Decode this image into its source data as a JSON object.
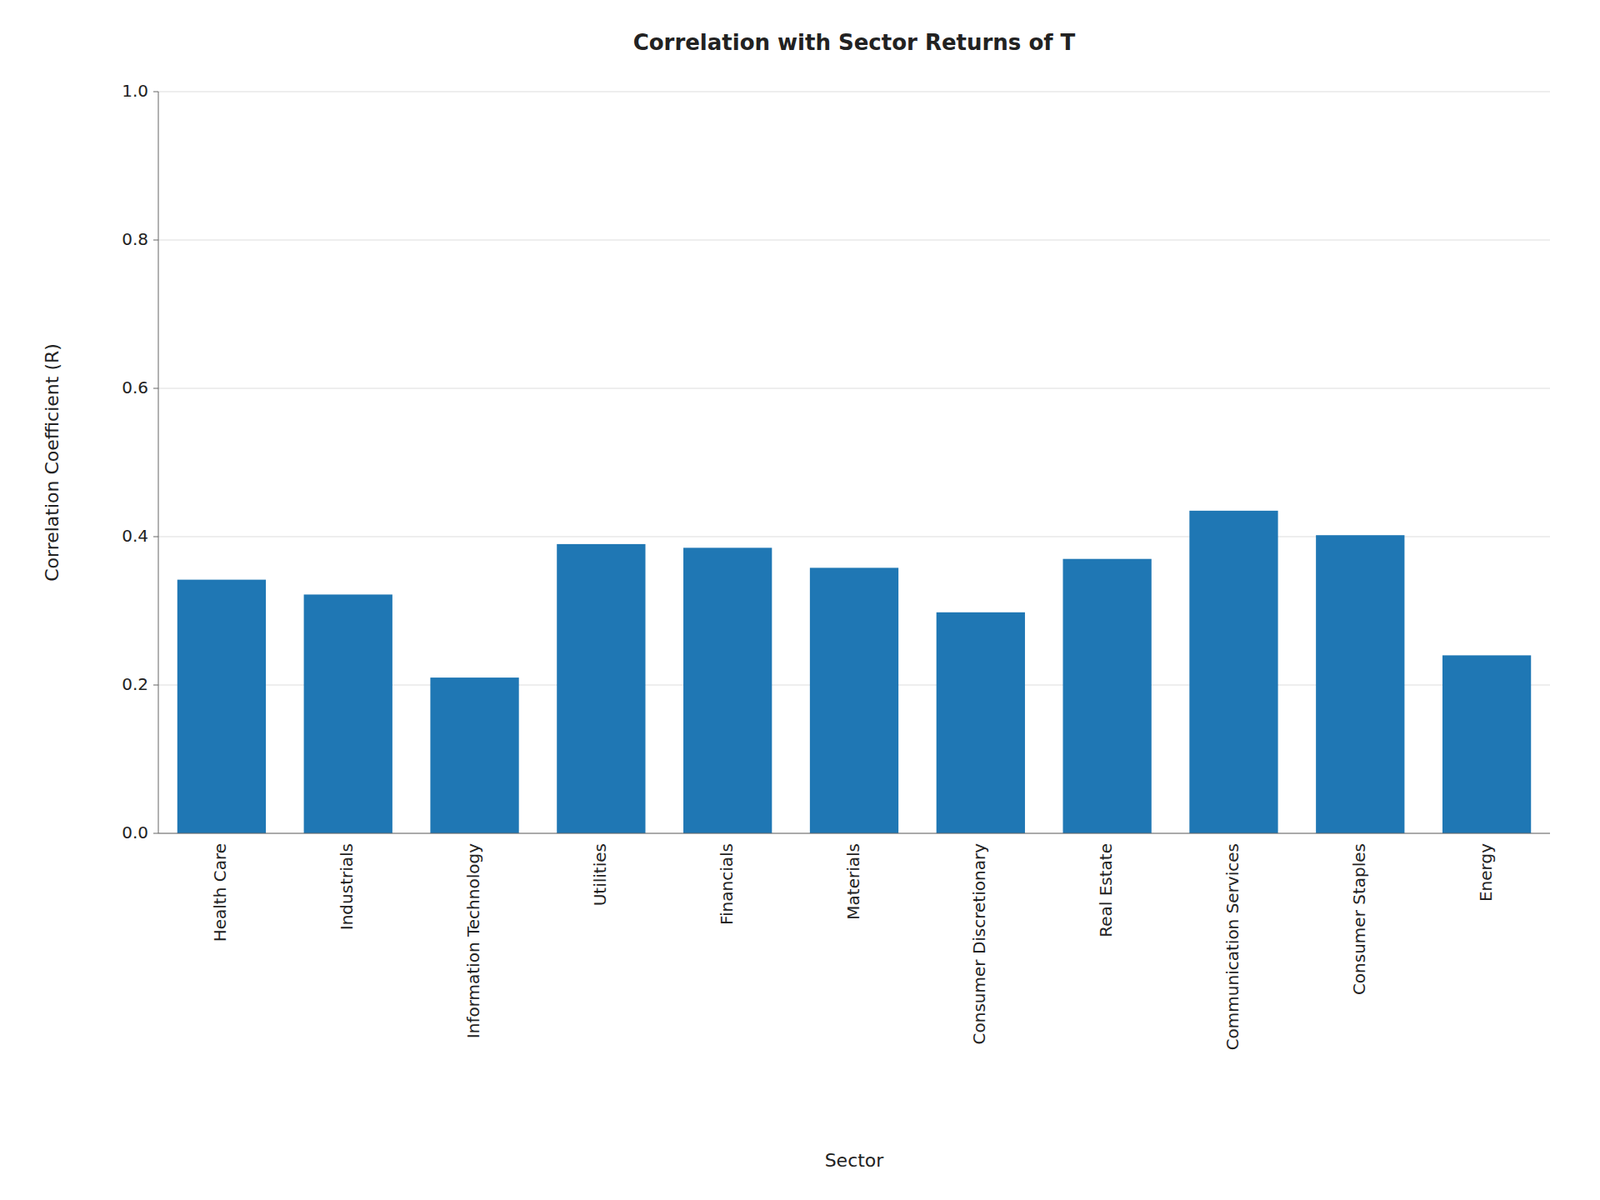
{
  "chart_data": {
    "type": "bar",
    "title": "Correlation with Sector Returns of T",
    "xlabel": "Sector",
    "ylabel": "Correlation Coefficient (R)",
    "categories": [
      "Health Care",
      "Industrials",
      "Information Technology",
      "Utilities",
      "Financials",
      "Materials",
      "Consumer Discretionary",
      "Real Estate",
      "Communication Services",
      "Consumer Staples",
      "Energy"
    ],
    "values": [
      0.342,
      0.322,
      0.21,
      0.39,
      0.385,
      0.358,
      0.298,
      0.37,
      0.435,
      0.402,
      0.24
    ],
    "color": "#1f77b4",
    "ylim": [
      0.0,
      1.0
    ],
    "yticks": [
      {
        "value": 0.0,
        "label": "0.0"
      },
      0.2,
      0.4,
      0.6,
      0.8,
      {
        "value": 1.0,
        "label": "1.0"
      }
    ],
    "grid": true
  }
}
